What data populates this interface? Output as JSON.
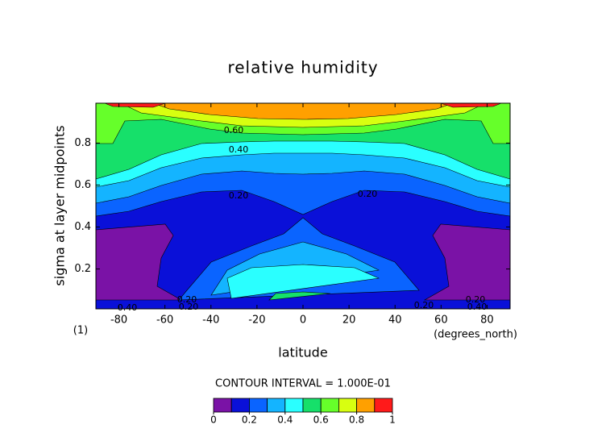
{
  "chart_data": {
    "type": "contour",
    "title": "relative humidity",
    "x_label": "latitude",
    "y_label": "sigma at layer midpoints",
    "x_units": "(degrees_north)",
    "panel_label": "(1)",
    "xlim": [
      -90,
      90
    ],
    "ylim": [
      0.01,
      0.99
    ],
    "xticks": [
      -80,
      -60,
      -40,
      -20,
      0,
      20,
      40,
      60,
      80
    ],
    "yticks": [
      0.2,
      0.4,
      0.6,
      0.8
    ],
    "contour_interval": "CONTOUR INTERVAL = 1.000E-01",
    "levels": [
      0,
      0.1,
      0.2,
      0.3,
      0.4,
      0.5,
      0.6,
      0.7,
      0.8,
      0.9,
      1
    ],
    "colors": [
      "#7a12a6",
      "#0a10d8",
      "#0a64ff",
      "#14b4ff",
      "#2affff",
      "#16e06a",
      "#66ff2a",
      "#d8ff10",
      "#ffa000",
      "#ff1a1a"
    ],
    "colorbar_ticks": [
      0,
      0.2,
      0.4,
      0.6,
      0.8,
      1
    ],
    "contour_labels": [
      {
        "value": 0.6,
        "label": "0.60"
      },
      {
        "value": 0.4,
        "label": "0.40"
      },
      {
        "value": 0.2,
        "label": "0.20"
      },
      {
        "value": 0.2,
        "label": "0.20"
      },
      {
        "value": 0.4,
        "label": "0.40"
      },
      {
        "value": 0.2,
        "label": "0.20"
      },
      {
        "value": 0.2,
        "label": "0.20"
      },
      {
        "value": 0.2,
        "label": "0.20"
      },
      {
        "value": 0.2,
        "label": "0.20"
      },
      {
        "value": 0.4,
        "label": "0.40"
      }
    ]
  }
}
